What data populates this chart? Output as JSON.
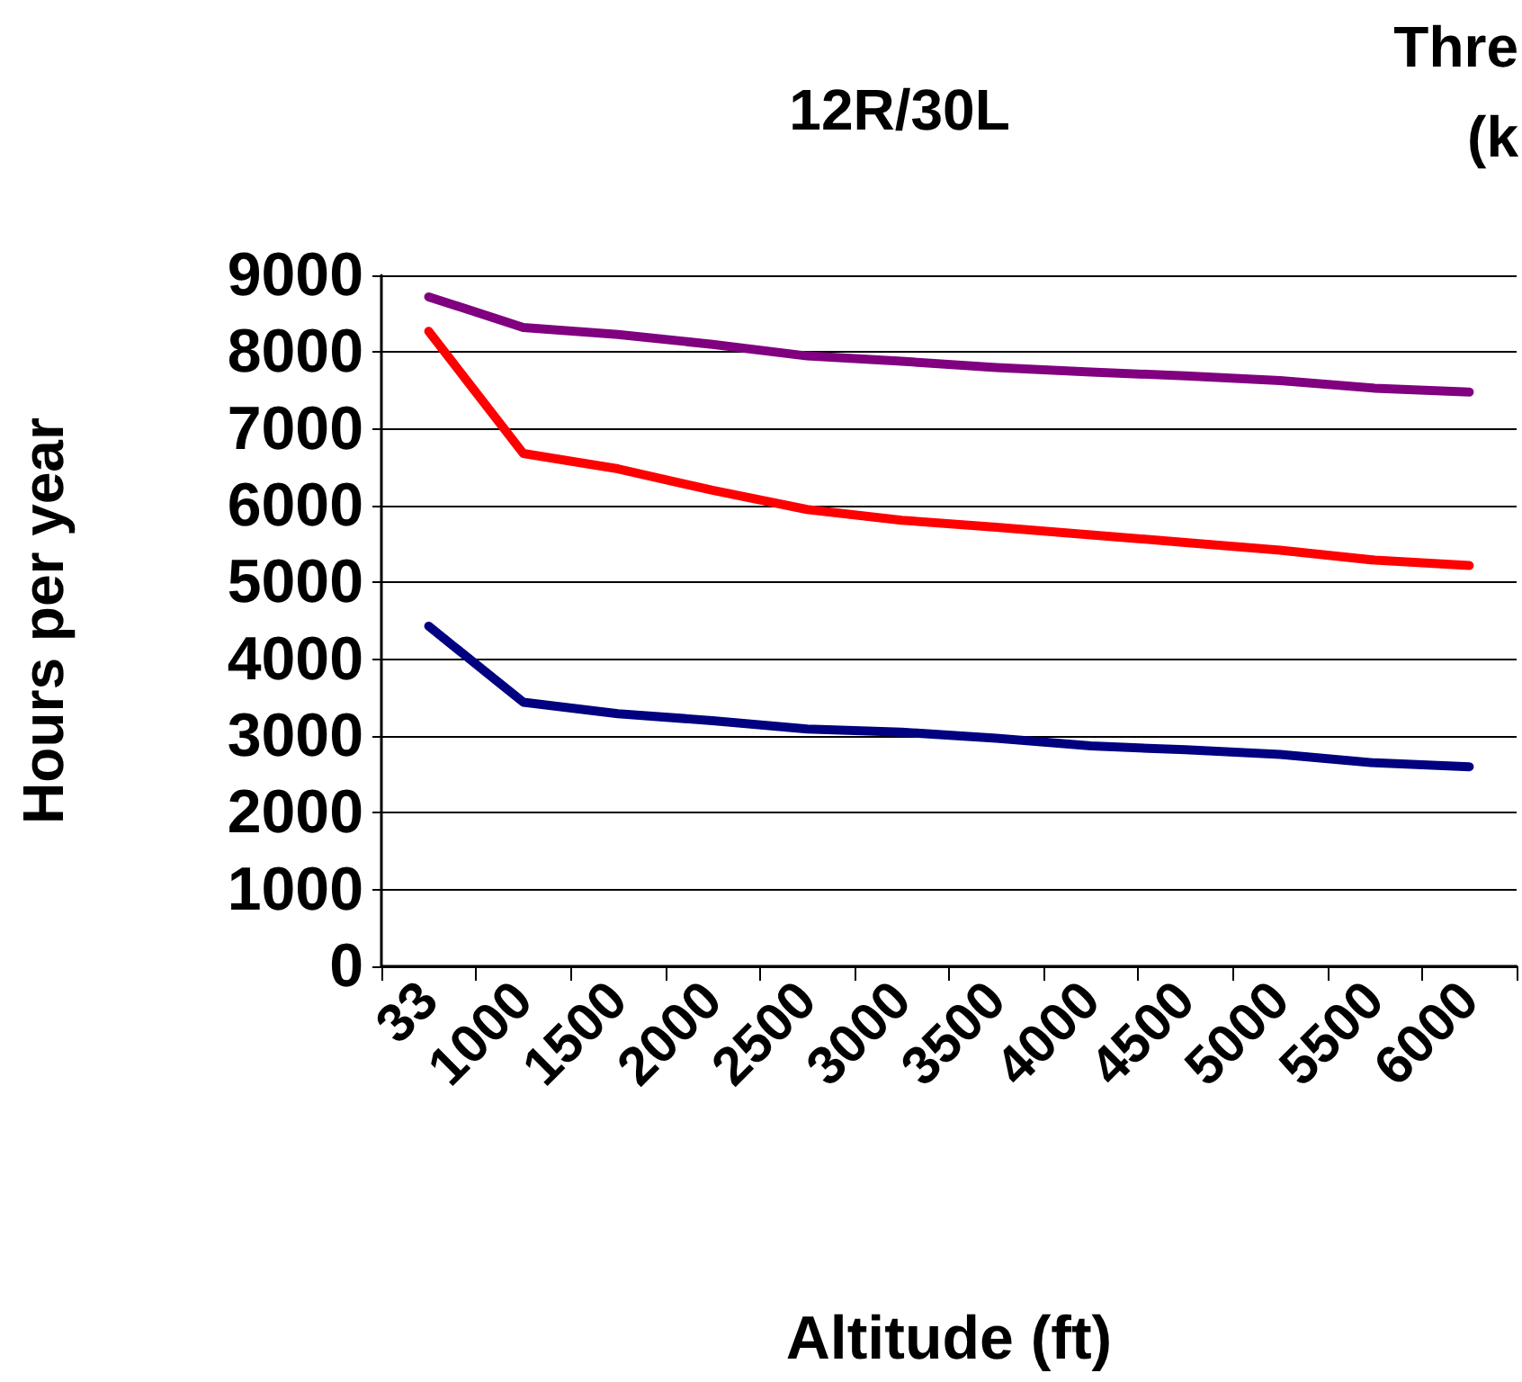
{
  "chart_data": {
    "type": "line",
    "title": "12R/30L",
    "xlabel": "Altitude (ft)",
    "ylabel": "Hours per year",
    "annotations": [
      "Thre",
      "(k"
    ],
    "categories": [
      "33",
      "1000",
      "1500",
      "2000",
      "2500",
      "3000",
      "3500",
      "4000",
      "4500",
      "5000",
      "5500",
      "6000"
    ],
    "series": [
      {
        "color": "#800080",
        "values": [
          8720,
          8320,
          8230,
          8100,
          7950,
          7880,
          7800,
          7740,
          7690,
          7630,
          7530,
          7480
        ]
      },
      {
        "color": "#ff0000",
        "values": [
          8270,
          6680,
          6480,
          6200,
          5950,
          5810,
          5720,
          5620,
          5520,
          5420,
          5290,
          5220
        ]
      },
      {
        "color": "#000080",
        "values": [
          4430,
          3440,
          3290,
          3200,
          3090,
          3050,
          2970,
          2870,
          2820,
          2760,
          2650,
          2600
        ]
      }
    ],
    "ylim": [
      0,
      9000
    ],
    "yticks": [
      0,
      1000,
      2000,
      3000,
      4000,
      5000,
      6000,
      7000,
      8000,
      9000
    ],
    "grid": "y",
    "marker": "none",
    "line_style": "solid"
  }
}
